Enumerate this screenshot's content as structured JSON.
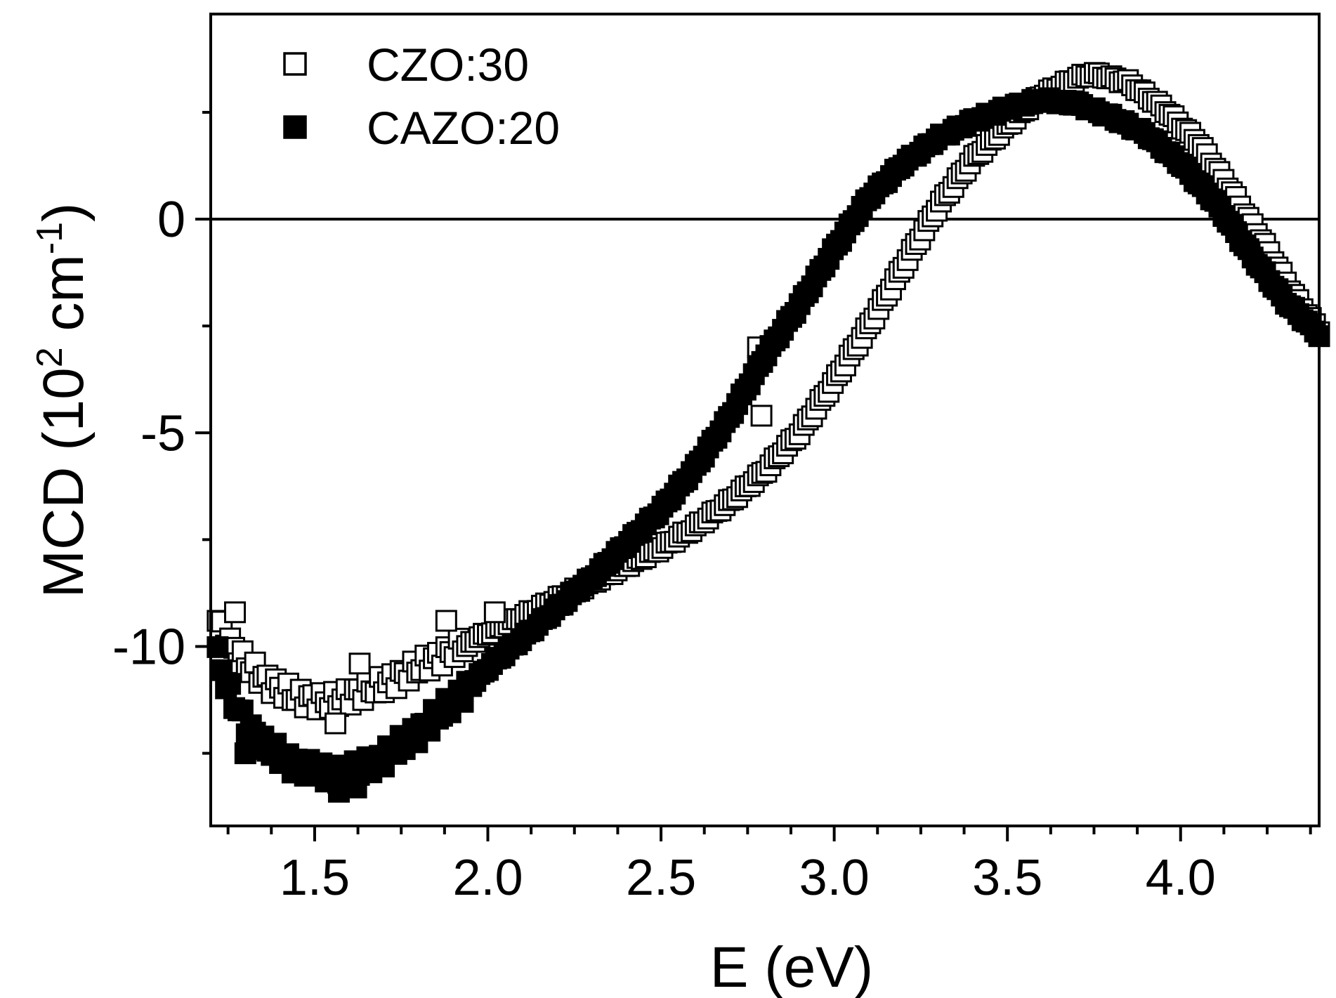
{
  "chart_data": {
    "type": "scatter",
    "title": "",
    "xlabel": "E (eV)",
    "ylabel": {
      "main": "MCD (10",
      "sup1": "2",
      "mid": " cm",
      "sup2": "-1",
      "end": ")"
    },
    "xlim": [
      1.2,
      4.4
    ],
    "ylim": [
      -14.2,
      4.8
    ],
    "x_ticks": [
      1.5,
      2.0,
      2.5,
      3.0,
      3.5,
      4.0
    ],
    "x_tick_labels": [
      "1.5",
      "2.0",
      "2.5",
      "3.0",
      "3.5",
      "4.0"
    ],
    "y_ticks": [
      -10,
      -5,
      0
    ],
    "y_tick_labels": [
      "-10",
      "-5",
      "0"
    ],
    "reference_line_y": 0,
    "legend_position": "top-left",
    "series": [
      {
        "name": "CZO:30",
        "marker": "open-square",
        "color": "#000000",
        "anchors": [
          [
            1.22,
            -9.4
          ],
          [
            1.26,
            -10.0
          ],
          [
            1.3,
            -10.4
          ],
          [
            1.36,
            -10.8
          ],
          [
            1.45,
            -11.2
          ],
          [
            1.55,
            -11.3
          ],
          [
            1.62,
            -11.1
          ],
          [
            1.7,
            -10.9
          ],
          [
            1.8,
            -10.5
          ],
          [
            1.9,
            -10.1
          ],
          [
            2.0,
            -9.7
          ],
          [
            2.1,
            -9.3
          ],
          [
            2.2,
            -8.9
          ],
          [
            2.3,
            -8.5
          ],
          [
            2.4,
            -8.1
          ],
          [
            2.5,
            -7.7
          ],
          [
            2.6,
            -7.2
          ],
          [
            2.7,
            -6.6
          ],
          [
            2.8,
            -5.9
          ],
          [
            2.9,
            -5.0
          ],
          [
            3.0,
            -3.8
          ],
          [
            3.1,
            -2.5
          ],
          [
            3.2,
            -1.1
          ],
          [
            3.3,
            0.3
          ],
          [
            3.4,
            1.4
          ],
          [
            3.5,
            2.2
          ],
          [
            3.6,
            2.9
          ],
          [
            3.7,
            3.3
          ],
          [
            3.75,
            3.4
          ],
          [
            3.85,
            3.2
          ],
          [
            3.95,
            2.6
          ],
          [
            4.05,
            1.8
          ],
          [
            4.15,
            0.6
          ],
          [
            4.25,
            -0.7
          ],
          [
            4.32,
            -1.7
          ],
          [
            4.38,
            -2.4
          ],
          [
            4.4,
            -2.6
          ]
        ],
        "outliers": [
          [
            1.27,
            -9.2
          ],
          [
            1.63,
            -10.4
          ],
          [
            1.56,
            -11.8
          ],
          [
            1.88,
            -9.4
          ],
          [
            2.02,
            -9.2
          ],
          [
            2.78,
            -3.0
          ],
          [
            2.79,
            -4.6
          ]
        ]
      },
      {
        "name": "CAZO:20",
        "marker": "filled-square",
        "color": "#000000",
        "anchors": [
          [
            1.22,
            -10.2
          ],
          [
            1.25,
            -11.0
          ],
          [
            1.3,
            -11.8
          ],
          [
            1.35,
            -12.3
          ],
          [
            1.45,
            -12.8
          ],
          [
            1.55,
            -13.0
          ],
          [
            1.62,
            -12.9
          ],
          [
            1.7,
            -12.6
          ],
          [
            1.8,
            -12.0
          ],
          [
            1.9,
            -11.3
          ],
          [
            2.0,
            -10.5
          ],
          [
            2.1,
            -9.8
          ],
          [
            2.2,
            -9.1
          ],
          [
            2.3,
            -8.4
          ],
          [
            2.4,
            -7.6
          ],
          [
            2.5,
            -6.8
          ],
          [
            2.6,
            -5.8
          ],
          [
            2.7,
            -4.6
          ],
          [
            2.8,
            -3.2
          ],
          [
            2.9,
            -2.0
          ],
          [
            3.0,
            -0.7
          ],
          [
            3.1,
            0.5
          ],
          [
            3.2,
            1.3
          ],
          [
            3.3,
            1.9
          ],
          [
            3.4,
            2.3
          ],
          [
            3.5,
            2.6
          ],
          [
            3.6,
            2.8
          ],
          [
            3.7,
            2.7
          ],
          [
            3.8,
            2.4
          ],
          [
            3.9,
            2.0
          ],
          [
            4.0,
            1.3
          ],
          [
            4.1,
            0.4
          ],
          [
            4.2,
            -0.8
          ],
          [
            4.3,
            -1.9
          ],
          [
            4.4,
            -2.7
          ]
        ],
        "outliers": [
          [
            1.3,
            -12.5
          ],
          [
            1.57,
            -13.4
          ],
          [
            1.62,
            -13.3
          ]
        ]
      }
    ]
  }
}
